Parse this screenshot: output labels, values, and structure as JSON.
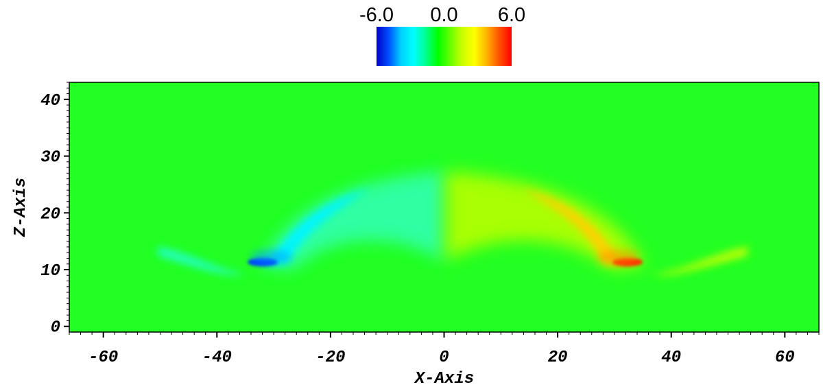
{
  "chart_data": {
    "type": "heatmap",
    "title": "",
    "xlabel": "X-Axis",
    "ylabel": "Z-Axis",
    "xlim": [
      -66,
      66
    ],
    "ylim": [
      -1,
      43
    ],
    "x_ticks": [
      {
        "value": -60,
        "label": "-60"
      },
      {
        "value": -40,
        "label": "-40"
      },
      {
        "value": -20,
        "label": "-20"
      },
      {
        "value": 0,
        "label": "0"
      },
      {
        "value": 20,
        "label": "20"
      },
      {
        "value": 40,
        "label": "40"
      },
      {
        "value": 60,
        "label": "60"
      }
    ],
    "y_ticks": [
      {
        "value": 0,
        "label": "0"
      },
      {
        "value": 10,
        "label": "10"
      },
      {
        "value": 20,
        "label": "20"
      },
      {
        "value": 30,
        "label": "30"
      },
      {
        "value": 40,
        "label": "40"
      }
    ],
    "colorbar": {
      "min": -6.0,
      "max": 6.0,
      "labels": [
        {
          "value": -6.0,
          "label": "-6.0"
        },
        {
          "value": 0.0,
          "label": "0.0"
        },
        {
          "value": 6.0,
          "label": "6.0"
        }
      ],
      "colors": [
        "#0000c8",
        "#0050ff",
        "#00d0ff",
        "#00ffff",
        "#00ff90",
        "#00ff00",
        "#66ff00",
        "#ccff00",
        "#ffff00",
        "#ffb000",
        "#ff5000",
        "#ff0000"
      ]
    },
    "background_value": 0.0,
    "features": [
      {
        "x": -33,
        "z": 12,
        "value": -6.0
      },
      {
        "x": 33,
        "z": 12,
        "value": 6.0
      },
      {
        "x": -20,
        "z": 20,
        "value": -3.0
      },
      {
        "x": 20,
        "z": 20,
        "value": 3.0
      },
      {
        "x": -45,
        "z": 12,
        "value": -2.0
      },
      {
        "x": 45,
        "z": 12,
        "value": 2.0
      }
    ]
  }
}
